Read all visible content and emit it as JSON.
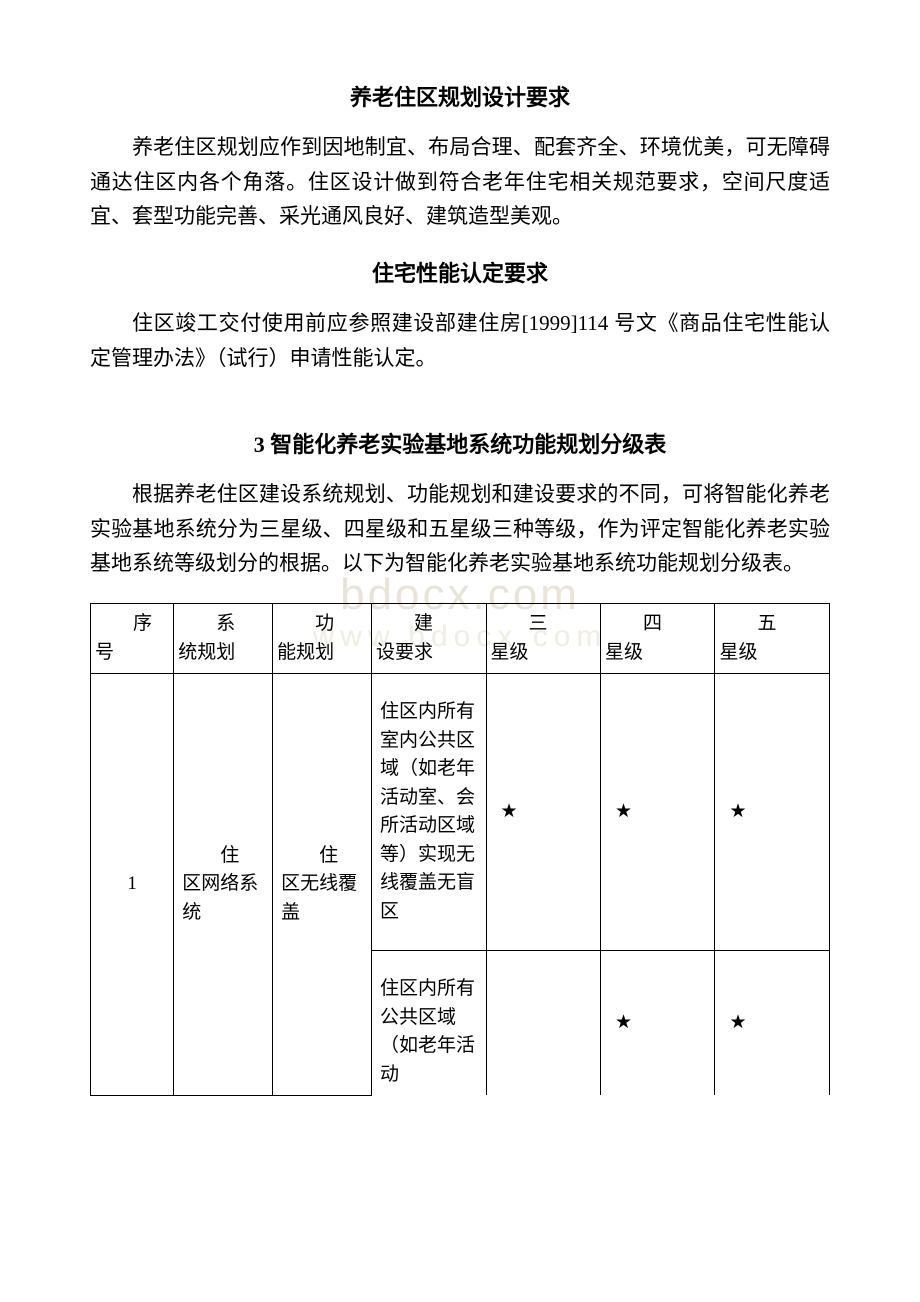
{
  "watermark": {
    "line1": "bdocx.com",
    "line2": "www.bdocx.com"
  },
  "sections": {
    "s1": {
      "heading": "养老住区规划设计要求",
      "paragraph": "养老住区规划应作到因地制宜、布局合理、配套齐全、环境优美，可无障碍通达住区内各个角落。住区设计做到符合老年住宅相关规范要求，空间尺度适宜、套型功能完善、采光通风良好、建筑造型美观。"
    },
    "s2": {
      "heading": "住宅性能认定要求",
      "paragraph": "住区竣工交付使用前应参照建设部建住房[1999]114 号文《商品住宅性能认定管理办法》（试行）申请性能认定。"
    },
    "s3": {
      "heading": "3 智能化养老实验基地系统功能规划分级表",
      "paragraph": "根据养老住区建设系统规划、功能规划和建设要求的不同，可将智能化养老实验基地系统分为三星级、四星级和五星级三种等级，作为评定智能化养老实验基地系统等级划分的根据。以下为智能化养老实验基地系统功能规划分级表。"
    }
  },
  "table": {
    "type": "table",
    "border_color": "#000000",
    "background_color": "#ffffff",
    "text_color": "#000000",
    "font_size": 19,
    "columns": [
      {
        "key": "seq",
        "label_line1": "序",
        "label_line2": "号",
        "width": 80
      },
      {
        "key": "sys",
        "label_line1": "系",
        "label_line2": "统规划",
        "width": 95
      },
      {
        "key": "func",
        "label_line1": "功",
        "label_line2": "能规划",
        "width": 95
      },
      {
        "key": "req",
        "label_line1": "建",
        "label_line2": "设要求",
        "width": 110
      },
      {
        "key": "star3",
        "label_line1": "三",
        "label_line2": "星级",
        "width": 110
      },
      {
        "key": "star4",
        "label_line1": "四",
        "label_line2": "星级",
        "width": 110
      },
      {
        "key": "star5",
        "label_line1": "五",
        "label_line2": "星级",
        "width": 110
      }
    ],
    "star_glyph": "★",
    "rows": [
      {
        "seq": "1",
        "sys": "住区网络系统",
        "func": "住区无线覆盖",
        "req": "住区内所有室内公共区域（如老年活动室、会所活动区域等）实现无线覆盖无盲区",
        "star3": true,
        "star4": true,
        "star5": true
      },
      {
        "req": "住区内所有公共区域（如老年活动",
        "star3": false,
        "star4": true,
        "star5": true
      }
    ]
  }
}
